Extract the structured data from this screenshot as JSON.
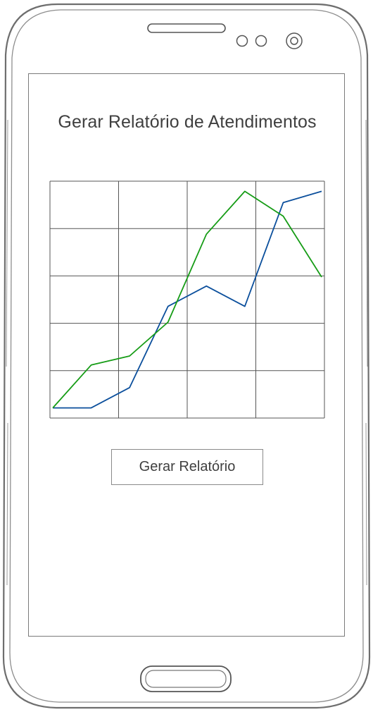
{
  "screen": {
    "title": "Gerar Relatório de Atendimentos",
    "generate_button_label": "Gerar Relatório"
  },
  "colors": {
    "series_1": "#0b4f9c",
    "series_2": "#169c16",
    "grid": "#555555",
    "text": "#3f3f3f"
  },
  "chart_data": {
    "type": "line",
    "title": "",
    "xlabel": "",
    "ylabel": "",
    "grid": true,
    "x": [
      0,
      1,
      2,
      3,
      4,
      5,
      6,
      7
    ],
    "xlim": [
      0,
      7
    ],
    "ylim": [
      0,
      100
    ],
    "series": [
      {
        "color": "#0b4f9c",
        "values": [
          2,
          2,
          11,
          47,
          56,
          47,
          93,
          98
        ]
      },
      {
        "color": "#169c16",
        "values": [
          2,
          21,
          25,
          40,
          79,
          98,
          87,
          60
        ]
      }
    ]
  }
}
